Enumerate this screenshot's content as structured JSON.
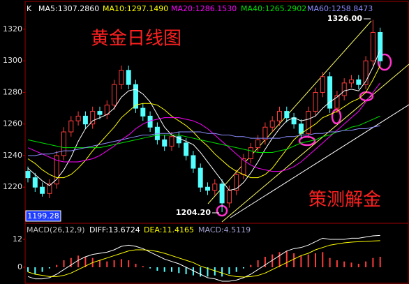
{
  "chart_data": [
    {
      "type": "candlestick",
      "legend_prefix": "K",
      "title": "黄金日线图",
      "watermark": "策测解金",
      "high_label": "1326.00",
      "low_label": "1204.20",
      "min_box": "1199.28",
      "up_color": "#ff3c3c",
      "down_color": "#54ffff",
      "ylim": [
        1198,
        1335
      ],
      "yticks": [
        1220,
        1240,
        1260,
        1280,
        1300,
        1320
      ],
      "open": [
        1230,
        1226,
        1220,
        1216,
        1222,
        1240,
        1255,
        1262,
        1265,
        1260,
        1268,
        1266,
        1272,
        1285,
        1294,
        1285,
        1270,
        1265,
        1258,
        1250,
        1246,
        1252,
        1248,
        1240,
        1232,
        1220,
        1218,
        1222,
        1210,
        1218,
        1228,
        1238,
        1245,
        1250,
        1258,
        1262,
        1268,
        1264,
        1260,
        1254,
        1268,
        1280,
        1290,
        1270,
        1278,
        1286,
        1288,
        1285,
        1300,
        1318
      ],
      "high": [
        1233,
        1229,
        1223,
        1225,
        1243,
        1258,
        1265,
        1268,
        1268,
        1271,
        1271,
        1275,
        1288,
        1297,
        1297,
        1288,
        1273,
        1268,
        1261,
        1253,
        1255,
        1255,
        1251,
        1243,
        1235,
        1223,
        1225,
        1225,
        1221,
        1231,
        1241,
        1248,
        1253,
        1261,
        1265,
        1271,
        1271,
        1267,
        1263,
        1271,
        1283,
        1293,
        1293,
        1281,
        1289,
        1291,
        1291,
        1303,
        1326,
        1321
      ],
      "low": [
        1223,
        1217,
        1214,
        1213,
        1219,
        1237,
        1252,
        1259,
        1257,
        1257,
        1263,
        1263,
        1269,
        1282,
        1282,
        1267,
        1262,
        1255,
        1247,
        1243,
        1243,
        1245,
        1237,
        1229,
        1217,
        1215,
        1215,
        1204.2,
        1207,
        1215,
        1225,
        1235,
        1242,
        1247,
        1255,
        1259,
        1261,
        1257,
        1251,
        1251,
        1265,
        1277,
        1267,
        1267,
        1275,
        1283,
        1282,
        1282,
        1297,
        1297
      ],
      "close": [
        1226,
        1220,
        1216,
        1222,
        1240,
        1255,
        1262,
        1265,
        1260,
        1268,
        1266,
        1272,
        1285,
        1294,
        1285,
        1270,
        1265,
        1258,
        1250,
        1246,
        1252,
        1248,
        1240,
        1232,
        1220,
        1218,
        1222,
        1210,
        1218,
        1228,
        1238,
        1245,
        1250,
        1258,
        1262,
        1268,
        1264,
        1260,
        1254,
        1268,
        1280,
        1290,
        1270,
        1278,
        1286,
        1288,
        1285,
        1300,
        1318,
        1300
      ],
      "series": [
        {
          "label": "MA5:1307.2860",
          "color": "#ffffff",
          "values": [
            1232,
            1228,
            1224,
            1221,
            1225,
            1231,
            1239,
            1249,
            1257,
            1262,
            1264,
            1266,
            1270,
            1277,
            1281,
            1282,
            1279,
            1274,
            1266,
            1258,
            1253,
            1251,
            1249,
            1247,
            1242,
            1236,
            1230,
            1224,
            1218,
            1219,
            1223,
            1229,
            1236,
            1244,
            1251,
            1257,
            1262,
            1264,
            1262,
            1263,
            1265,
            1270,
            1274,
            1277,
            1281,
            1282,
            1281,
            1287,
            1296,
            1307
          ]
        },
        {
          "label": "MA10:1297.1490",
          "color": "#ffff00",
          "values": [
            1238,
            1235,
            1231,
            1228,
            1226,
            1226,
            1228,
            1232,
            1237,
            1243,
            1248,
            1253,
            1258,
            1264,
            1268,
            1272,
            1273,
            1273,
            1272,
            1269,
            1265,
            1262,
            1259,
            1255,
            1250,
            1246,
            1241,
            1237,
            1233,
            1230,
            1228,
            1226,
            1226,
            1228,
            1232,
            1238,
            1244,
            1250,
            1254,
            1257,
            1260,
            1264,
            1266,
            1268,
            1271,
            1274,
            1276,
            1280,
            1288,
            1297
          ]
        },
        {
          "label": "MA20:1286.1530",
          "color": "#ff00ff",
          "values": [
            1245,
            1243,
            1241,
            1239,
            1237,
            1236,
            1236,
            1236,
            1237,
            1238,
            1240,
            1243,
            1246,
            1250,
            1253,
            1257,
            1260,
            1262,
            1263,
            1264,
            1264,
            1264,
            1263,
            1262,
            1260,
            1257,
            1253,
            1249,
            1245,
            1241,
            1237,
            1234,
            1232,
            1231,
            1230,
            1230,
            1231,
            1233,
            1236,
            1240,
            1244,
            1248,
            1252,
            1256,
            1260,
            1264,
            1268,
            1274,
            1280,
            1286
          ]
        },
        {
          "label": "MA40:1265.2902",
          "color": "#00e000",
          "values": [
            1250,
            1249,
            1248,
            1247,
            1246,
            1245,
            1245,
            1245,
            1245,
            1245,
            1245,
            1246,
            1247,
            1248,
            1249,
            1250,
            1251,
            1252,
            1253,
            1253,
            1253,
            1253,
            1252,
            1251,
            1250,
            1249,
            1248,
            1247,
            1246,
            1245,
            1244,
            1243,
            1242,
            1242,
            1242,
            1243,
            1244,
            1246,
            1248,
            1249,
            1250,
            1252,
            1253,
            1255,
            1256,
            1258,
            1259,
            1261,
            1263,
            1265
          ]
        },
        {
          "label": "MA60:1258.8473",
          "color": "#8c8cff",
          "values": [
            1240,
            1240,
            1241,
            1241,
            1242,
            1243,
            1243,
            1244,
            1245,
            1246,
            1247,
            1248,
            1249,
            1250,
            1251,
            1252,
            1253,
            1253,
            1254,
            1254,
            1254,
            1255,
            1255,
            1255,
            1255,
            1254,
            1254,
            1253,
            1253,
            1252,
            1252,
            1251,
            1251,
            1251,
            1251,
            1251,
            1252,
            1252,
            1253,
            1253,
            1254,
            1254,
            1255,
            1255,
            1256,
            1256,
            1257,
            1257,
            1258,
            1259
          ]
        }
      ]
    },
    {
      "type": "macd",
      "title": "MACD(26,12,9)",
      "ylim": [
        -7.2,
        18.3
      ],
      "yticks": [
        0,
        12
      ],
      "histogram": {
        "label": "MACD:4.5119",
        "color": "#a0a0d0",
        "up_color": "#ff3c3c",
        "down_color": "#54ffff",
        "values": [
          -2,
          -3,
          -2,
          -0.5,
          1,
          3,
          4,
          5,
          4.5,
          4,
          3,
          2.5,
          3,
          3.5,
          3,
          1.5,
          0.5,
          -0.5,
          -1.5,
          -2,
          -2,
          -2.5,
          -3,
          -3.5,
          -4,
          -4,
          -3.5,
          -4,
          -3,
          -2,
          -0.5,
          1,
          3,
          4.5,
          5.5,
          6.5,
          7,
          6,
          5,
          5.5,
          6,
          6.5,
          4,
          3,
          2.5,
          2,
          1.5,
          2.5,
          4,
          4.5
        ]
      },
      "series": [
        {
          "label": "DIFF:13.6724",
          "color": "#ffffff",
          "values": [
            -4,
            -5,
            -5,
            -4.5,
            -3,
            -1,
            1,
            3,
            4.5,
            5.5,
            6,
            6.5,
            7.5,
            9,
            9.5,
            9,
            8,
            6.5,
            5,
            3.5,
            2.5,
            1.5,
            0,
            -1.5,
            -3,
            -4.5,
            -5,
            -6,
            -6,
            -5.5,
            -4.5,
            -3,
            -1,
            1,
            3,
            5,
            7,
            8,
            8.5,
            9.5,
            11,
            12.5,
            12,
            12,
            12,
            12.5,
            12.5,
            13,
            13.5,
            13.67
          ]
        },
        {
          "label": "DEA:11.4165",
          "color": "#ffff00",
          "values": [
            -2,
            -3,
            -3.5,
            -4,
            -4,
            -3.5,
            -2.5,
            -1,
            0.5,
            2,
            3,
            4,
            5,
            6,
            7,
            7.5,
            7.5,
            7.3,
            6.8,
            6,
            5,
            4,
            3,
            2,
            0.5,
            -0.5,
            -1.5,
            -2.5,
            -3.5,
            -4,
            -4.2,
            -4,
            -3.5,
            -2.5,
            -1,
            0.5,
            2,
            3.5,
            5,
            6,
            7.5,
            8.5,
            9.5,
            10,
            10.5,
            10.8,
            11,
            11.1,
            11.3,
            11.42
          ]
        }
      ]
    }
  ]
}
